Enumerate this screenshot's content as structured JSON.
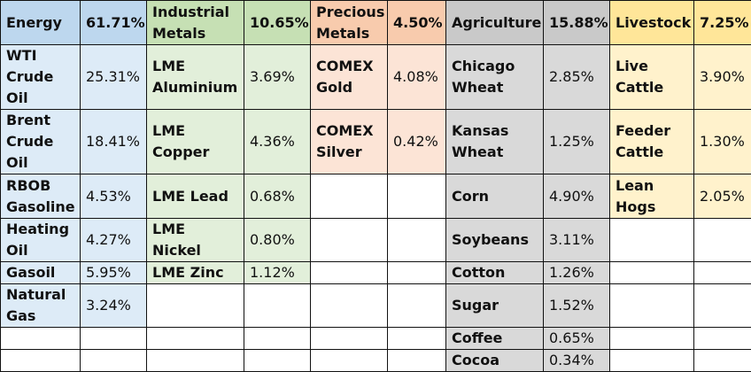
{
  "table": {
    "header": [
      {
        "name": "Energy",
        "weight": "61.71%"
      },
      {
        "name": "Industrial Metals",
        "weight": "10.65%"
      },
      {
        "name": "Precious Metals",
        "weight": "4.50%"
      },
      {
        "name": "Agriculture",
        "weight": "15.88%"
      },
      {
        "name": "Livestock",
        "weight": "7.25%"
      }
    ],
    "rows": [
      [
        "WTI Crude Oil",
        "25.31%",
        "LME Aluminium",
        "3.69%",
        "COMEX Gold",
        "4.08%",
        "Chicago Wheat",
        "2.85%",
        "Live Cattle",
        "3.90%"
      ],
      [
        "Brent Crude Oil",
        "18.41%",
        "LME Copper",
        "4.36%",
        "COMEX Silver",
        "0.42%",
        "Kansas Wheat",
        "1.25%",
        "Feeder Cattle",
        "1.30%"
      ],
      [
        "RBOB Gasoline",
        "4.53%",
        "LME Lead",
        "0.68%",
        null,
        null,
        "Corn",
        "4.90%",
        "Lean Hogs",
        "2.05%"
      ],
      [
        "Heating Oil",
        "4.27%",
        "LME Nickel",
        "0.80%",
        null,
        null,
        "Soybeans",
        "3.11%",
        null,
        null
      ],
      [
        "Gasoil",
        "5.95%",
        "LME Zinc",
        "1.12%",
        null,
        null,
        "Cotton",
        "1.26%",
        null,
        null
      ],
      [
        "Natural Gas",
        "3.24%",
        null,
        null,
        null,
        null,
        "Sugar",
        "1.52%",
        null,
        null
      ],
      [
        null,
        null,
        null,
        null,
        null,
        null,
        "Coffee",
        "0.65%",
        null,
        null
      ],
      [
        null,
        null,
        null,
        null,
        null,
        null,
        "Cocoa",
        "0.34%",
        null,
        null
      ]
    ]
  }
}
